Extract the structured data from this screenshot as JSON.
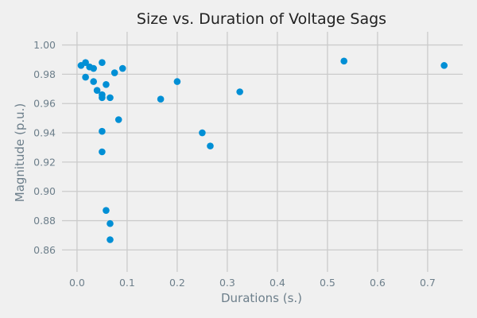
{
  "chart_data": {
    "type": "scatter",
    "title": "Size vs. Duration of Voltage Sags",
    "xlabel": "Durations (s.)",
    "ylabel": "Magnitude (p.u.)",
    "xlim": [
      -0.03,
      0.77
    ],
    "ylim": [
      0.845,
      1.009
    ],
    "xticks": [
      0.0,
      0.1,
      0.2,
      0.3,
      0.4,
      0.5,
      0.6,
      0.7
    ],
    "xtick_labels": [
      "0.0",
      "0.1",
      "0.2",
      "0.3",
      "0.4",
      "0.5",
      "0.6",
      "0.7"
    ],
    "yticks": [
      0.86,
      0.88,
      0.9,
      0.92,
      0.94,
      0.96,
      0.98,
      1.0
    ],
    "ytick_labels": [
      "0.86",
      "0.88",
      "0.90",
      "0.92",
      "0.94",
      "0.96",
      "0.98",
      "1.00"
    ],
    "grid": true,
    "color": "#008fd5",
    "points": [
      {
        "x": 0.008,
        "y": 0.986
      },
      {
        "x": 0.017,
        "y": 0.988
      },
      {
        "x": 0.017,
        "y": 0.978
      },
      {
        "x": 0.025,
        "y": 0.985
      },
      {
        "x": 0.033,
        "y": 0.984
      },
      {
        "x": 0.033,
        "y": 0.975
      },
      {
        "x": 0.04,
        "y": 0.969
      },
      {
        "x": 0.05,
        "y": 0.988
      },
      {
        "x": 0.05,
        "y": 0.966
      },
      {
        "x": 0.05,
        "y": 0.964
      },
      {
        "x": 0.05,
        "y": 0.941
      },
      {
        "x": 0.05,
        "y": 0.927
      },
      {
        "x": 0.058,
        "y": 0.973
      },
      {
        "x": 0.058,
        "y": 0.887
      },
      {
        "x": 0.066,
        "y": 0.964
      },
      {
        "x": 0.066,
        "y": 0.878
      },
      {
        "x": 0.066,
        "y": 0.867
      },
      {
        "x": 0.075,
        "y": 0.981
      },
      {
        "x": 0.083,
        "y": 0.949
      },
      {
        "x": 0.091,
        "y": 0.984
      },
      {
        "x": 0.167,
        "y": 0.963
      },
      {
        "x": 0.2,
        "y": 0.975
      },
      {
        "x": 0.25,
        "y": 0.94
      },
      {
        "x": 0.266,
        "y": 0.931
      },
      {
        "x": 0.325,
        "y": 0.968
      },
      {
        "x": 0.533,
        "y": 0.989
      },
      {
        "x": 0.733,
        "y": 0.986
      }
    ]
  }
}
